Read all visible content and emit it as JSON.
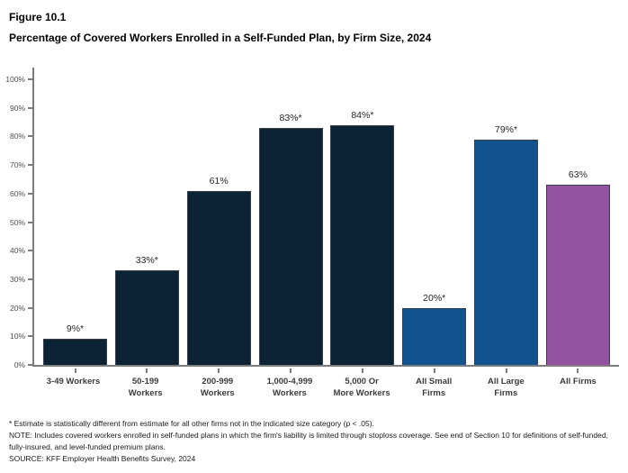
{
  "header": {
    "figure_label": "Figure 10.1",
    "title": "Percentage of Covered Workers Enrolled in a Self-Funded Plan, by Firm Size, 2024"
  },
  "chart_data": {
    "type": "bar",
    "title": "Figure 10.1",
    "subtitle": "Percentage of Covered Workers Enrolled in a Self-Funded Plan, by Firm Size, 2024",
    "categories": [
      "3-49 Workers",
      "50-199 Workers",
      "200-999 Workers",
      "1,000-4,999 Workers",
      "5,000 Or More Workers",
      "All Small Firms",
      "All Large Firms",
      "All Firms"
    ],
    "tick_lines": [
      [
        "3-49 Workers"
      ],
      [
        "50-199",
        "Workers"
      ],
      [
        "200-999",
        "Workers"
      ],
      [
        "1,000-4,999",
        "Workers"
      ],
      [
        "5,000 Or",
        "More Workers"
      ],
      [
        "All Small",
        "Firms"
      ],
      [
        "All Large",
        "Firms"
      ],
      [
        "All Firms"
      ]
    ],
    "values": [
      9,
      33,
      61,
      83,
      84,
      20,
      79,
      63
    ],
    "data_labels": [
      "9%*",
      "33%*",
      "61%",
      "83%*",
      "84%*",
      "20%*",
      "79%*",
      "63%"
    ],
    "colors": [
      "#0C2336",
      "#0C2336",
      "#0C2336",
      "#0C2336",
      "#0C2336",
      "#10538E",
      "#10538E",
      "#9353A1"
    ],
    "ylim": [
      0,
      100
    ],
    "ytick_step": 10,
    "ytick_labels": [
      "0%",
      "10%",
      "20%",
      "30%",
      "40%",
      "50%",
      "60%",
      "70%",
      "80%",
      "90%",
      "100%"
    ],
    "grid": false,
    "legend": "none",
    "axis_color": "#7d7d7d"
  },
  "footnotes": {
    "asterisk_note": "* Estimate is statistically different from estimate for all other firms not in the indicated size category (p < .05).",
    "note": "NOTE: Includes covered workers enrolled in self-funded plans in which the firm's liability is limited through stoploss coverage. See end of Section 10 for definitions of self-funded, fully-insured, and level-funded premium plans.",
    "source": "SOURCE: KFF Employer Health Benefits Survey, 2024"
  }
}
